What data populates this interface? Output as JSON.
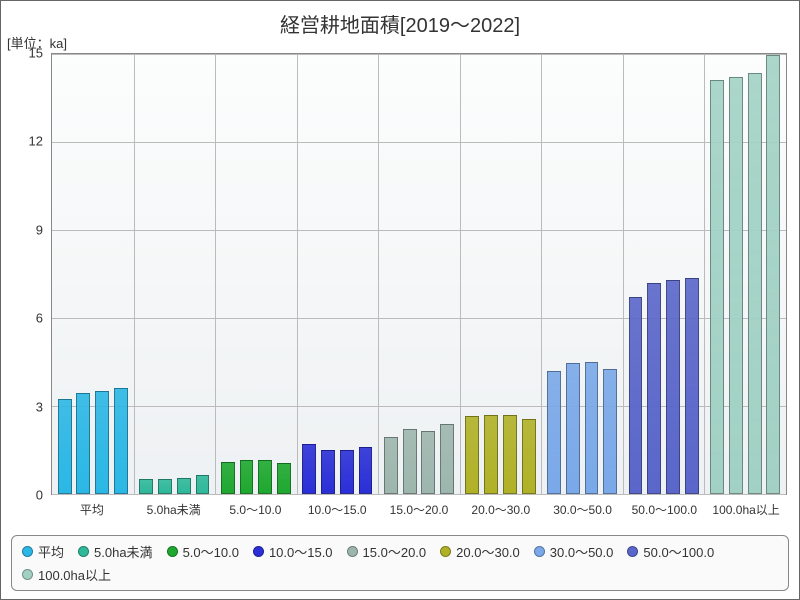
{
  "chart": {
    "type": "bar-grouped",
    "title": "経営耕地面積[2019～2022]",
    "unit_label": "[単位：ka]",
    "title_fontsize": 20,
    "label_fontsize": 13,
    "xlabel_fontsize": 12,
    "background_gradient": [
      "#fcfdfd",
      "#eef1f3"
    ],
    "grid_color": "#bbbbbb",
    "border_color": "#888888",
    "ylim": [
      0,
      15
    ],
    "ytick_step": 3,
    "yticks": [
      0,
      3,
      6,
      9,
      12,
      15
    ],
    "years": [
      2019,
      2020,
      2021,
      2022
    ],
    "categories": [
      {
        "label": "平均",
        "color": "#2bb7e5",
        "values": [
          3.25,
          3.45,
          3.5,
          3.6
        ]
      },
      {
        "label": "5.0ha未満",
        "color": "#2fb89a",
        "values": [
          0.5,
          0.5,
          0.55,
          0.65
        ]
      },
      {
        "label": "5.0～10.0",
        "color": "#1ea82f",
        "values": [
          1.1,
          1.15,
          1.15,
          1.05
        ]
      },
      {
        "label": "10.0～15.0",
        "color": "#2a2fd6",
        "values": [
          1.7,
          1.5,
          1.5,
          1.6
        ]
      },
      {
        "label": "15.0～20.0",
        "color": "#9db6ad",
        "values": [
          1.95,
          2.2,
          2.15,
          2.4
        ]
      },
      {
        "label": "20.0～30.0",
        "color": "#b0b127",
        "values": [
          2.65,
          2.7,
          2.7,
          2.55
        ]
      },
      {
        "label": "30.0～50.0",
        "color": "#7aa8e8",
        "values": [
          4.2,
          4.45,
          4.5,
          4.25
        ]
      },
      {
        "label": "50.0～100.0",
        "color": "#5a66c9",
        "values": [
          6.7,
          7.2,
          7.3,
          7.35
        ]
      },
      {
        "label": "100.0ha以上",
        "color": "#a2d1c4",
        "values": [
          14.1,
          14.2,
          14.35,
          14.95
        ]
      }
    ],
    "bar_gap_ratio": 0.06,
    "group_gap_ratio": 0.14
  }
}
